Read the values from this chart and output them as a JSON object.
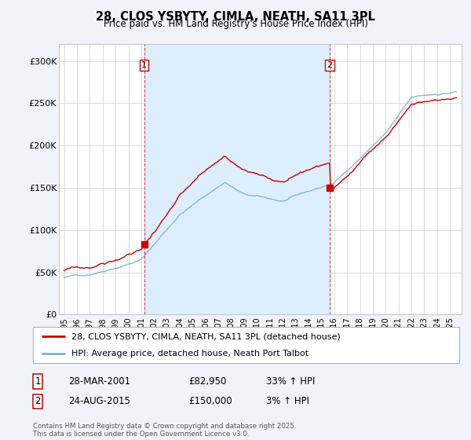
{
  "title": "28, CLOS YSBYTY, CIMLA, NEATH, SA11 3PL",
  "subtitle": "Price paid vs. HM Land Registry's House Price Index (HPI)",
  "ylim": [
    0,
    320000
  ],
  "yticks": [
    0,
    50000,
    100000,
    150000,
    200000,
    250000,
    300000
  ],
  "ytick_labels": [
    "£0",
    "£50K",
    "£100K",
    "£150K",
    "£200K",
    "£250K",
    "£300K"
  ],
  "line1_color": "#cc0000",
  "line2_color": "#7bafd4",
  "fill_color": "#ddeeff",
  "vline_color": "#cc0000",
  "purchase1_year": 2001.22,
  "purchase2_year": 2015.65,
  "purchase1_price": 82950,
  "purchase2_price": 150000,
  "legend_line1": "28, CLOS YSBYTY, CIMLA, NEATH, SA11 3PL (detached house)",
  "legend_line2": "HPI: Average price, detached house, Neath Port Talbot",
  "note1_label": "1",
  "note1_date": "28-MAR-2001",
  "note1_price": "£82,950",
  "note1_hpi": "33% ↑ HPI",
  "note2_label": "2",
  "note2_date": "24-AUG-2015",
  "note2_price": "£150,000",
  "note2_hpi": "3% ↑ HPI",
  "footer": "Contains HM Land Registry data © Crown copyright and database right 2025.\nThis data is licensed under the Open Government Licence v3.0.",
  "bg_color": "#f0f4f8",
  "plot_bg_color": "#ffffff",
  "grid_color": "#cccccc"
}
